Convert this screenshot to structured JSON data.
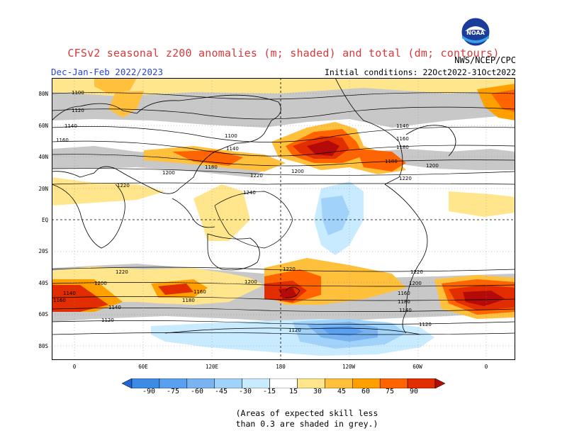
{
  "title": "CFSv2 seasonal z200 anomalies (m; shaded) and total (dm; contours)",
  "subtitle": "Dec-Jan-Feb 2022/2023",
  "initial_conditions": "Initial conditions: 22Oct2022-31Oct2022",
  "agency": "NWS/NCEP/CPC",
  "logo_text": "NOAA",
  "note_line1": "(Areas of expected skill less",
  "note_line2": "than 0.3 are shaded in grey.)",
  "lat_labels": [
    "80N",
    "60N",
    "40N",
    "20N",
    "EQ",
    "20S",
    "40S",
    "60S",
    "80S"
  ],
  "lon_labels": [
    "0",
    "60E",
    "120E",
    "180",
    "120W",
    "60W",
    "0"
  ],
  "colorbar": {
    "labels": [
      "-90",
      "-75",
      "-60",
      "-45",
      "-30",
      "-15",
      "15",
      "30",
      "45",
      "60",
      "75",
      "90"
    ],
    "colors": [
      "#1e64d2",
      "#3c8ce6",
      "#5aa0f0",
      "#7ab4f0",
      "#a0d2fa",
      "#c8ebff",
      "#ffffff",
      "#ffe68c",
      "#ffc03c",
      "#ffa000",
      "#ff6400",
      "#e12d00",
      "#b40a0a"
    ]
  },
  "contour_labels": [
    "1100",
    "1120",
    "1140",
    "1160",
    "1180",
    "1200",
    "1220",
    "1240"
  ],
  "colors": {
    "title": "#d73a3a",
    "subtitle": "#2a45d0",
    "grey_mask": "#c8c8c8"
  }
}
